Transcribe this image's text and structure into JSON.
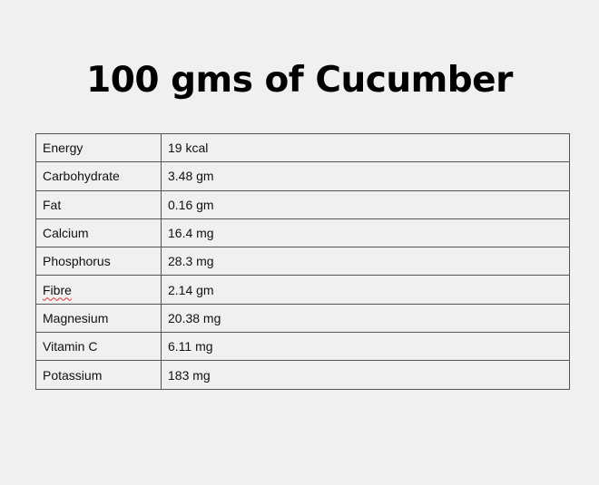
{
  "title": "100 gms of Cucumber",
  "rows": [
    {
      "nutrient": "Energy",
      "amount": "19 kcal"
    },
    {
      "nutrient": "Carbohydrate",
      "amount": "3.48 gm"
    },
    {
      "nutrient": "Fat",
      "amount": "0.16 gm"
    },
    {
      "nutrient": "Calcium",
      "amount": "16.4 mg"
    },
    {
      "nutrient": "Phosphorus",
      "amount": "28.3 mg"
    },
    {
      "nutrient": "Fibre",
      "amount": "2.14 gm"
    },
    {
      "nutrient": "Magnesium",
      "amount": "20.38 mg"
    },
    {
      "nutrient": "Vitamin C",
      "amount": "6.11 mg"
    },
    {
      "nutrient": "Potassium",
      "amount": "183 mg"
    }
  ]
}
